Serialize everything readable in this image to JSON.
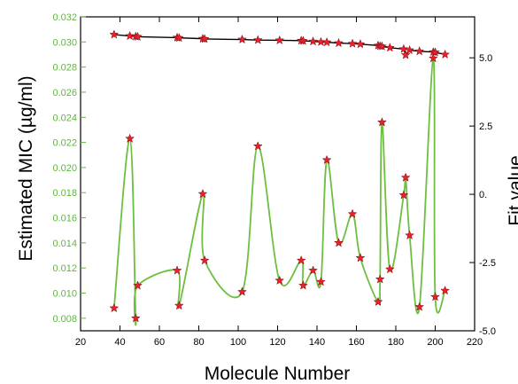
{
  "chart_data": {
    "type": "line",
    "xlabel": "Molecule Number",
    "ylabel_left": "Estimated MIC (µg/ml)",
    "ylabel_right": "Fit value",
    "xlim": [
      20,
      220
    ],
    "ylim_left": [
      0.007,
      0.032
    ],
    "ylim_right": [
      -5.0,
      6.5
    ],
    "x_ticks": [
      20,
      40,
      60,
      80,
      100,
      120,
      140,
      160,
      180,
      200,
      220
    ],
    "y_left_ticks": [
      0.008,
      0.01,
      0.012,
      0.014,
      0.016,
      0.018,
      0.02,
      0.022,
      0.024,
      0.026,
      0.028,
      0.03,
      0.032
    ],
    "y_left_tick_labels": [
      "0.008",
      "0.010",
      "0.012",
      "0.014",
      "0.016",
      "0.018",
      "0.020",
      "0.022",
      "0.024",
      "0.026",
      "0.028",
      "0.030",
      "0.032"
    ],
    "y_right_ticks": [
      5.0,
      2.5,
      0,
      -2.5,
      -5.0
    ],
    "y_right_tick_labels": [
      "5.0",
      "2.5",
      "0.",
      "-2.5",
      "-5.0"
    ],
    "grid": false,
    "series": [
      {
        "axis": "left",
        "style": "smooth-line-star-markers",
        "color": "#6dbf3f",
        "marker_color": "#e8212a",
        "points": [
          {
            "x": 37,
            "y": 0.0088
          },
          {
            "x": 45,
            "y": 0.0223
          },
          {
            "x": 48,
            "y": 0.008
          },
          {
            "x": 49,
            "y": 0.0106
          },
          {
            "x": 69,
            "y": 0.0118
          },
          {
            "x": 70,
            "y": 0.009
          },
          {
            "x": 82,
            "y": 0.0179
          },
          {
            "x": 83,
            "y": 0.0126
          },
          {
            "x": 102,
            "y": 0.0101
          },
          {
            "x": 110,
            "y": 0.0217
          },
          {
            "x": 121,
            "y": 0.011
          },
          {
            "x": 132,
            "y": 0.0126
          },
          {
            "x": 133,
            "y": 0.0106
          },
          {
            "x": 138,
            "y": 0.0118
          },
          {
            "x": 142,
            "y": 0.0109
          },
          {
            "x": 145,
            "y": 0.0206
          },
          {
            "x": 151,
            "y": 0.014
          },
          {
            "x": 158,
            "y": 0.0163
          },
          {
            "x": 162,
            "y": 0.0128
          },
          {
            "x": 171,
            "y": 0.0093
          },
          {
            "x": 172,
            "y": 0.0111
          },
          {
            "x": 173,
            "y": 0.0236
          },
          {
            "x": 177,
            "y": 0.0119
          },
          {
            "x": 184,
            "y": 0.0178
          },
          {
            "x": 185,
            "y": 0.0192
          },
          {
            "x": 187,
            "y": 0.0146
          },
          {
            "x": 192,
            "y": 0.0089
          },
          {
            "x": 199,
            "y": 0.0287
          },
          {
            "x": 200,
            "y": 0.0097
          },
          {
            "x": 205,
            "y": 0.0102
          }
        ]
      },
      {
        "axis": "right",
        "style": "line-star-markers",
        "color": "#000000",
        "marker_color": "#e8212a",
        "points": [
          {
            "x": 37,
            "y": 5.85
          },
          {
            "x": 45,
            "y": 5.8
          },
          {
            "x": 48,
            "y": 5.78
          },
          {
            "x": 49,
            "y": 5.77
          },
          {
            "x": 69,
            "y": 5.74
          },
          {
            "x": 70,
            "y": 5.73
          },
          {
            "x": 82,
            "y": 5.7
          },
          {
            "x": 83,
            "y": 5.69
          },
          {
            "x": 102,
            "y": 5.67
          },
          {
            "x": 110,
            "y": 5.65
          },
          {
            "x": 121,
            "y": 5.64
          },
          {
            "x": 132,
            "y": 5.63
          },
          {
            "x": 133,
            "y": 5.62
          },
          {
            "x": 138,
            "y": 5.6
          },
          {
            "x": 142,
            "y": 5.58
          },
          {
            "x": 145,
            "y": 5.57
          },
          {
            "x": 151,
            "y": 5.54
          },
          {
            "x": 158,
            "y": 5.52
          },
          {
            "x": 162,
            "y": 5.5
          },
          {
            "x": 171,
            "y": 5.45
          },
          {
            "x": 172,
            "y": 5.43
          },
          {
            "x": 173,
            "y": 5.42
          },
          {
            "x": 177,
            "y": 5.37
          },
          {
            "x": 184,
            "y": 5.32
          },
          {
            "x": 185,
            "y": 5.1
          },
          {
            "x": 187,
            "y": 5.28
          },
          {
            "x": 192,
            "y": 5.24
          },
          {
            "x": 199,
            "y": 5.21
          },
          {
            "x": 200,
            "y": 5.2
          },
          {
            "x": 205,
            "y": 5.12
          }
        ]
      }
    ]
  },
  "colors": {
    "left_axis": "#5cb83a",
    "right_axis": "#000000",
    "mic_line": "#6dbf3f",
    "fit_line": "#000000",
    "marker": "#e8212a",
    "marker_edge": "#7a0a10"
  }
}
